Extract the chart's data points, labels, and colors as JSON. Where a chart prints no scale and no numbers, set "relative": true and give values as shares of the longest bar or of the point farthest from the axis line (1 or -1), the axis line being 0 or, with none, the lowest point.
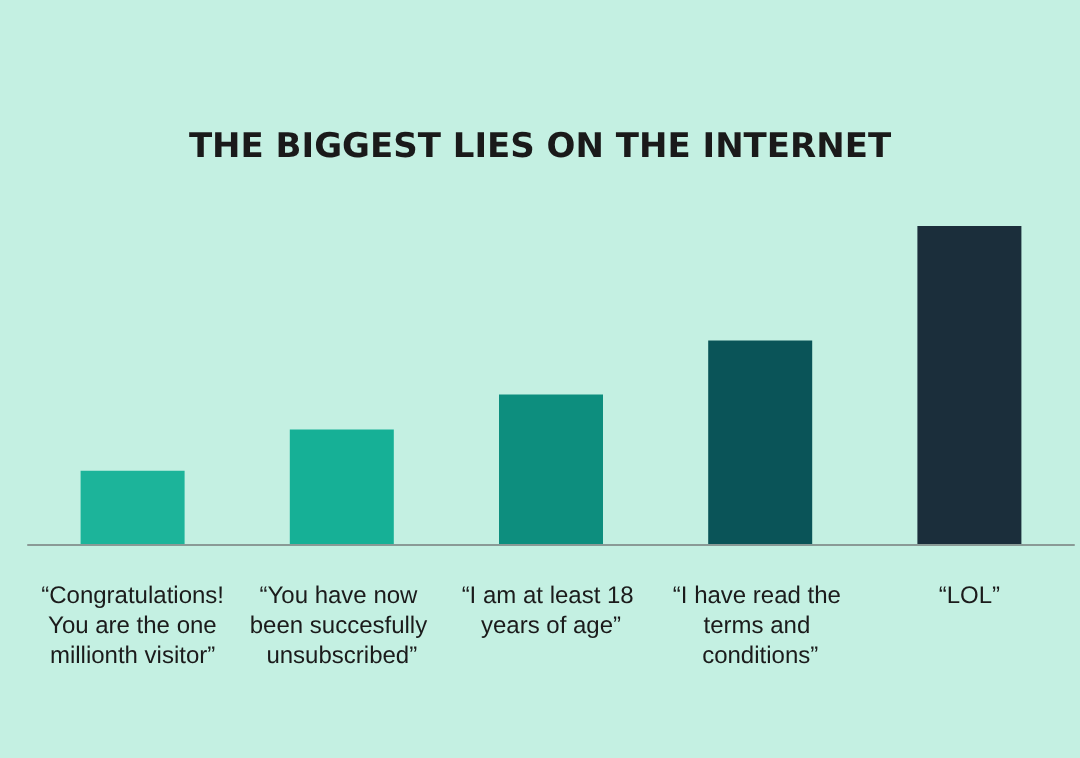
{
  "chart_data": {
    "type": "bar",
    "title": "THE BIGGEST LIES ON THE INTERNET",
    "categories": [
      "“Congratulations! You are the one millionth visitor”",
      "“You have now been succesfully unsubscribed”",
      "“I am at least 18 years of age”",
      "“I have read the terms and conditions”",
      "“LOL”"
    ],
    "values": [
      0.23,
      0.36,
      0.47,
      0.64,
      1
    ],
    "colors": [
      "#1cb49a",
      "#16b096",
      "#0d8e7e",
      "#0a5458",
      "#1b2e3b"
    ],
    "relative": true
  }
}
